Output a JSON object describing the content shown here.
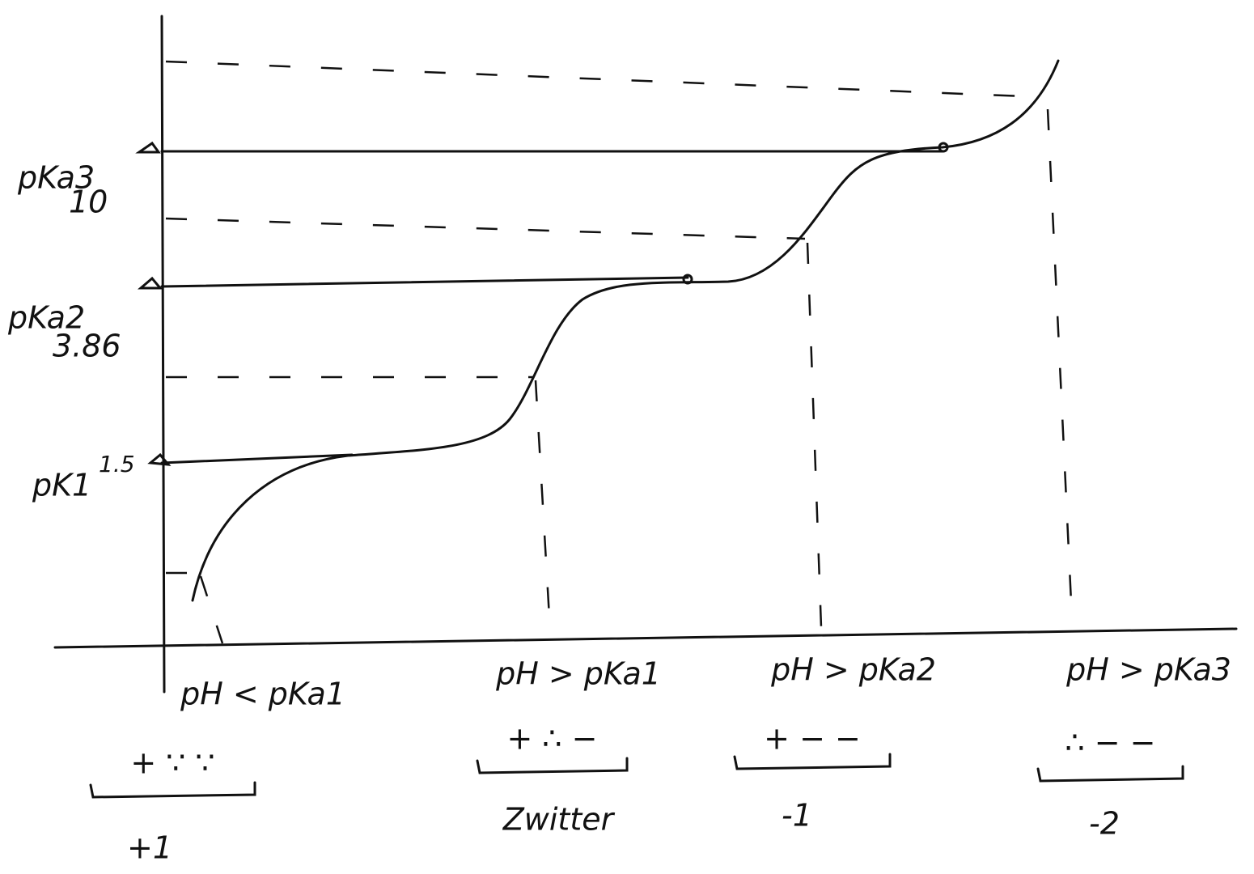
{
  "axis_labels": [
    {
      "name": "pKa3",
      "value": "10"
    },
    {
      "name": "pKa2",
      "value": "3.86"
    },
    {
      "name": "pK1",
      "value": "1.5"
    }
  ],
  "regions": [
    {
      "condition": "pH < pKa1",
      "charges": "+ ∵ ∵",
      "net": "+1"
    },
    {
      "condition": "pH > pKa1",
      "charges": "+ ∴ −",
      "net": "Zwitter"
    },
    {
      "condition": "pH > pKa2",
      "charges": "+ − −",
      "net": "-1"
    },
    {
      "condition": "pH > pKa3",
      "charges": "∴ − −",
      "net": "-2"
    }
  ]
}
